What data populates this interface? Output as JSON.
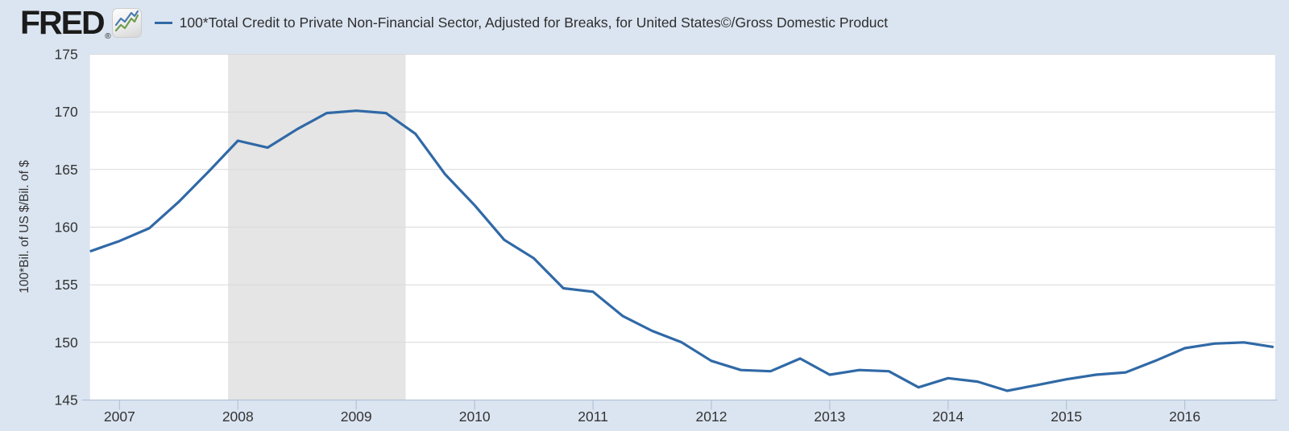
{
  "header": {
    "logo_text": "FRED",
    "registered_mark": "®",
    "logo_icon": {
      "blue": "#4a7ab0",
      "green": "#6f9e4f"
    },
    "legend_dash_color": "#3069a6",
    "series_title": "100*Total Credit to Private Non-Financial Sector, Adjusted for Breaks, for United States©/Gross Domestic Product"
  },
  "chart_data": {
    "type": "line",
    "title": "100*Total Credit to Private Non-Financial Sector, Adjusted for Breaks, for United States©/Gross Domestic Product",
    "xlabel": "",
    "ylabel": "100*Bil. of US $/Bil. of $",
    "x_tick_labels": [
      "2007",
      "2008",
      "2009",
      "2010",
      "2011",
      "2012",
      "2013",
      "2014",
      "2015",
      "2016"
    ],
    "y_ticks": [
      145,
      150,
      155,
      160,
      165,
      170,
      175
    ],
    "xlim": [
      2006.75,
      2016.763
    ],
    "ylim": [
      145,
      175
    ],
    "grid": "horizontal",
    "legend_position": "top-header",
    "recession_bands": [
      {
        "start": 2007.917,
        "end": 2009.417
      }
    ],
    "series": [
      {
        "name": "100*Total Credit to Private Non-Financial Sector, Adjusted for Breaks, for United States©/Gross Domestic Product",
        "color": "#3069a6",
        "frequency": "quarterly",
        "x_start": 2006.75,
        "x_step": 0.25,
        "values": [
          157.9,
          158.8,
          159.9,
          162.2,
          164.8,
          167.5,
          166.9,
          168.5,
          169.9,
          170.1,
          169.9,
          168.1,
          164.6,
          161.9,
          158.9,
          157.3,
          154.7,
          154.4,
          152.3,
          151.0,
          150.0,
          148.4,
          147.6,
          147.5,
          148.6,
          147.2,
          147.6,
          147.5,
          146.1,
          146.9,
          146.6,
          145.8,
          146.3,
          146.8,
          147.2,
          147.4,
          148.4,
          149.5,
          149.9,
          150.0,
          149.6
        ]
      }
    ],
    "colors": {
      "page_bg": "#dbe5f1",
      "plot_bg": "#ffffff",
      "grid": "#d9d9d9",
      "recession_band": "#e5e5e5",
      "axis": "#b3c3d6",
      "text": "#333333"
    }
  }
}
